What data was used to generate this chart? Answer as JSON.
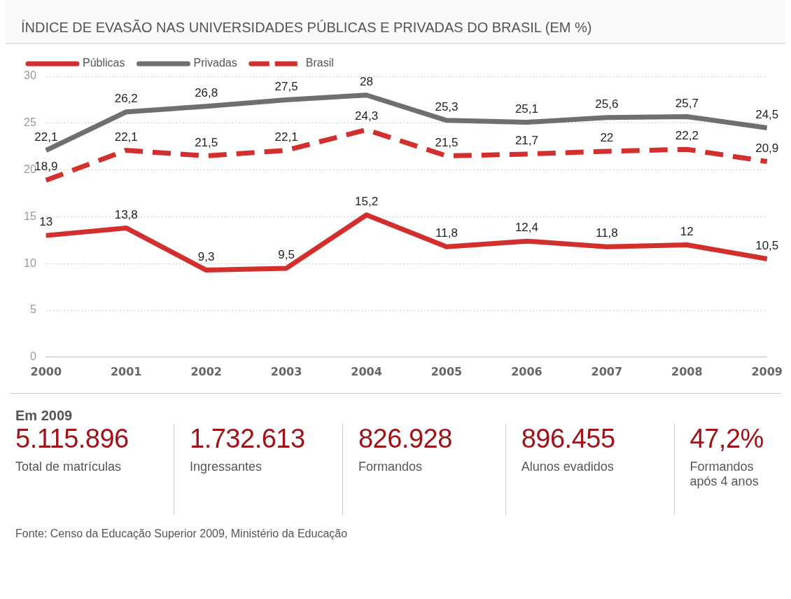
{
  "chart_data": [
    {
      "type": "line",
      "title": "ÍNDICE DE EVASÃO NAS UNIVERSIDADES PÚBLICAS E PRIVADAS DO BRASIL (EM %)",
      "categories": [
        "2000",
        "2001",
        "2002",
        "2003",
        "2004",
        "2005",
        "2006",
        "2007",
        "2008",
        "2009"
      ],
      "ylim": [
        0,
        30
      ],
      "yticks": [
        0,
        5,
        10,
        15,
        20,
        25,
        30
      ],
      "grid": "y",
      "legend": "top left",
      "marker": "none",
      "series": [
        {
          "name": "Públicas",
          "color": "#d2302e",
          "line_style": "solid",
          "values": [
            13,
            13.8,
            9.3,
            9.5,
            15.2,
            11.8,
            12.4,
            11.8,
            12,
            10.5
          ],
          "value_labels": [
            "13",
            "13,8",
            "9,3",
            "9,5",
            "15,2",
            "11,8",
            "12,4",
            "11,8",
            "12",
            "10,5"
          ]
        },
        {
          "name": "Privadas",
          "color": "#6f6f6f",
          "line_style": "solid",
          "values": [
            22.1,
            26.2,
            26.8,
            27.5,
            28,
            25.3,
            25.1,
            25.6,
            25.7,
            24.5
          ],
          "value_labels": [
            "22,1",
            "26,2",
            "26,8",
            "27,5",
            "28",
            "25,3",
            "25,1",
            "25,6",
            "25,7",
            "24,5"
          ]
        },
        {
          "name": "Brasil",
          "color": "#d2302e",
          "line_style": "dashed",
          "values": [
            18.9,
            22.1,
            21.5,
            22.1,
            24.3,
            21.5,
            21.7,
            22,
            22.2,
            20.9
          ],
          "value_labels": [
            "18,9",
            "22,1",
            "21,5",
            "22,1",
            "24,3",
            "21,5",
            "21,7",
            "22",
            "22,2",
            "20,9"
          ]
        }
      ],
      "annotations": [
        "Fonte: Censo da Educação Superior 2009, Ministério da Educação"
      ]
    },
    {
      "type": "other",
      "title": "Em 2009",
      "annotations": [
        "5.115.896",
        "Total de matrículas",
        "1.732.613",
        "Ingressantes",
        "826.928",
        "Formandos",
        "896.455",
        "Alunos evadidos",
        "47,2%",
        "Formandos após 4 anos"
      ]
    }
  ]
}
